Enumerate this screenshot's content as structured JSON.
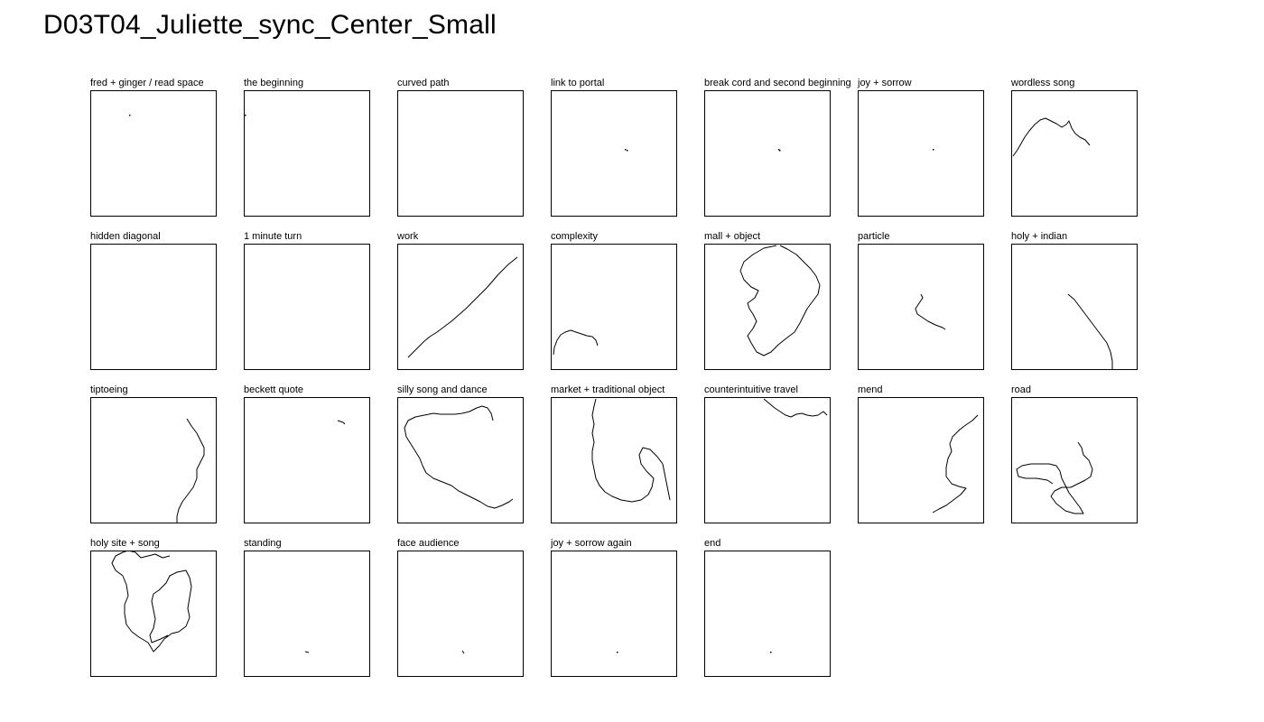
{
  "title": "D03T04_Juliette_sync_Center_Small",
  "panels": [
    {
      "label": "fred + ginger / read space"
    },
    {
      "label": "the beginning"
    },
    {
      "label": "curved path"
    },
    {
      "label": "link to portal"
    },
    {
      "label": "break cord and second beginning"
    },
    {
      "label": "joy + sorrow"
    },
    {
      "label": "wordless song"
    },
    {
      "label": "hidden diagonal"
    },
    {
      "label": "1 minute turn"
    },
    {
      "label": "work"
    },
    {
      "label": "complexity"
    },
    {
      "label": "mall + object"
    },
    {
      "label": "particle"
    },
    {
      "label": "holy + indian"
    },
    {
      "label": "tiptoeing"
    },
    {
      "label": "beckett quote"
    },
    {
      "label": "silly song and dance"
    },
    {
      "label": "market + traditional object"
    },
    {
      "label": "counterintuitive travel"
    },
    {
      "label": "mend"
    },
    {
      "label": "road"
    },
    {
      "label": "holy site + song"
    },
    {
      "label": "standing"
    },
    {
      "label": "face audience"
    },
    {
      "label": "joy + sorrow again"
    },
    {
      "label": "end"
    }
  ]
}
